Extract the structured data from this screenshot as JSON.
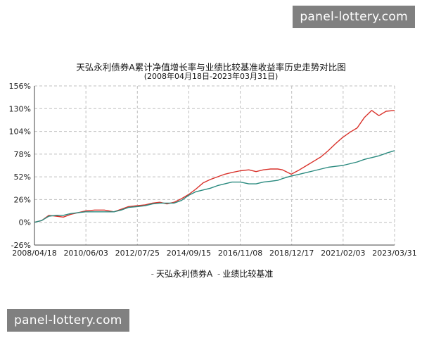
{
  "watermark_top": "panel-lottery.com",
  "watermark_bottom": "panel-lottery.com",
  "chart_data": {
    "type": "line",
    "title": "天弘永利债券A累计净值增长率与业绩比较基准收益率历史走势对比图",
    "subtitle": "(2008年04月18日-2023年03月31日)",
    "x_tick_labels": [
      "2008/04/18",
      "2010/06/03",
      "2012/07/25",
      "2014/09/15",
      "2016/11/08",
      "2018/12/17",
      "2021/02/03",
      "2023/03/31"
    ],
    "y_tick_labels": [
      "156%",
      "130%",
      "104%",
      "78%",
      "52%",
      "26%",
      "0%",
      "-26%"
    ],
    "ylim": [
      -26,
      156
    ],
    "grid": true,
    "legend_position": "bottom",
    "series": [
      {
        "name": "天弘永利债券A",
        "color": "#d9322b",
        "x": [
          2008.3,
          2008.6,
          2008.9,
          2009.2,
          2009.5,
          2009.8,
          2010.1,
          2010.42,
          2010.8,
          2011.2,
          2011.6,
          2011.9,
          2012.2,
          2012.57,
          2012.9,
          2013.2,
          2013.5,
          2013.8,
          2014.1,
          2014.4,
          2014.71,
          2015.0,
          2015.3,
          2015.6,
          2015.9,
          2016.2,
          2016.5,
          2016.85,
          2017.2,
          2017.5,
          2017.8,
          2018.1,
          2018.4,
          2018.6,
          2018.96,
          2019.3,
          2019.6,
          2019.9,
          2020.2,
          2020.5,
          2020.8,
          2021.09,
          2021.4,
          2021.7,
          2022.0,
          2022.3,
          2022.6,
          2022.9,
          2023.25
        ],
        "values": [
          0,
          2,
          8,
          7,
          6,
          9,
          11,
          13,
          14,
          14,
          12,
          15,
          18,
          19,
          20,
          22,
          23,
          21,
          23,
          27,
          32,
          38,
          45,
          49,
          52,
          55,
          57,
          59,
          60,
          58,
          60,
          61,
          61,
          60,
          55,
          60,
          65,
          70,
          75,
          82,
          90,
          97,
          103,
          108,
          120,
          128,
          122,
          127,
          128
        ]
      },
      {
        "name": "业绩比较基准",
        "color": "#2a8a7f",
        "x": [
          2008.3,
          2008.6,
          2008.9,
          2009.2,
          2009.5,
          2009.8,
          2010.1,
          2010.42,
          2010.8,
          2011.2,
          2011.6,
          2011.9,
          2012.2,
          2012.57,
          2012.9,
          2013.2,
          2013.5,
          2013.8,
          2014.1,
          2014.4,
          2014.71,
          2015.0,
          2015.3,
          2015.6,
          2015.9,
          2016.2,
          2016.5,
          2016.85,
          2017.2,
          2017.5,
          2017.8,
          2018.1,
          2018.4,
          2018.6,
          2018.96,
          2019.3,
          2019.6,
          2019.9,
          2020.2,
          2020.5,
          2020.8,
          2021.09,
          2021.4,
          2021.7,
          2022.0,
          2022.3,
          2022.6,
          2022.9,
          2023.25
        ],
        "values": [
          0,
          2,
          7,
          8,
          8,
          10,
          11,
          12,
          12,
          12,
          12,
          14,
          17,
          18,
          19,
          21,
          22,
          22,
          22,
          25,
          31,
          35,
          37,
          39,
          42,
          44,
          46,
          46,
          44,
          44,
          46,
          47,
          48,
          50,
          53,
          55,
          57,
          59,
          61,
          63,
          64,
          65,
          67,
          69,
          72,
          74,
          76,
          79,
          82
        ]
      }
    ]
  },
  "legend": {
    "dash": "-",
    "series1": "天弘永利债券A",
    "series2": "业绩比较基准"
  },
  "colors": {
    "grid": "#bfbfbf",
    "axis": "#444444"
  }
}
